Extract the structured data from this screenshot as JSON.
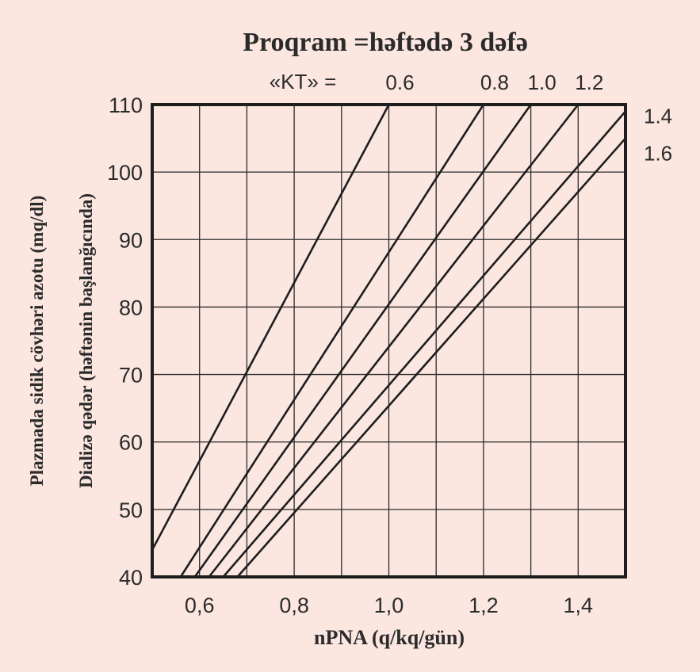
{
  "chart_data": {
    "type": "line",
    "title": "Proqram =həftədə 3 dəfə",
    "xlabel": "nPNA (q/kq/gün)",
    "ylabel_line1": "Plazmada sidik cövhəri azotu (mq/dl)",
    "ylabel_line2": "Dializə qədər (həftənin başlanğıcında)",
    "xlim": [
      0.5,
      1.5
    ],
    "ylim": [
      40,
      110
    ],
    "xticks": [
      0.6,
      0.8,
      1.0,
      1.2,
      1.4
    ],
    "xtick_labels": [
      "0,6",
      "0,8",
      "1,0",
      "1,2",
      "1,4"
    ],
    "yticks": [
      40,
      50,
      60,
      70,
      80,
      90,
      100,
      110
    ],
    "ytick_labels": [
      "40",
      "50",
      "60",
      "70",
      "80",
      "90",
      "100",
      "110"
    ],
    "grid": true,
    "kt_prefix": "«KT» =",
    "series": [
      {
        "name": "0.6",
        "points": [
          [
            0.5,
            44
          ],
          [
            1.0,
            110
          ]
        ]
      },
      {
        "name": "0.8",
        "points": [
          [
            0.56,
            40
          ],
          [
            1.2,
            110
          ]
        ]
      },
      {
        "name": "1.0",
        "points": [
          [
            0.59,
            40
          ],
          [
            1.3,
            110
          ]
        ]
      },
      {
        "name": "1.2",
        "points": [
          [
            0.62,
            40
          ],
          [
            1.4,
            110
          ]
        ]
      },
      {
        "name": "1.4",
        "points": [
          [
            0.65,
            40
          ],
          [
            1.5,
            109
          ]
        ]
      },
      {
        "name": "1.6",
        "points": [
          [
            0.68,
            40
          ],
          [
            1.5,
            105
          ]
        ]
      }
    ]
  },
  "colors": {
    "background": "#fbe6e0",
    "ink": "#1e1e1e"
  }
}
